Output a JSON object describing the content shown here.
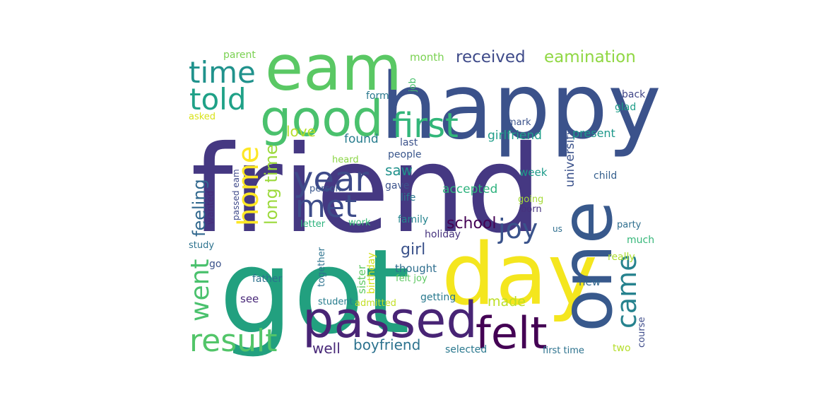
{
  "words": [
    {
      "text": "friend",
      "color": "#453882"
    },
    {
      "text": "got",
      "color": "#22a07f"
    },
    {
      "text": "happy",
      "color": "#3b528b"
    },
    {
      "text": "eam",
      "color": "#5ac864"
    },
    {
      "text": "day",
      "color": "#f4e61e"
    },
    {
      "text": "passed",
      "color": "#482475"
    },
    {
      "text": "one",
      "color": "#38598c"
    },
    {
      "text": "felt",
      "color": "#440154"
    },
    {
      "text": "good",
      "color": "#4ac16d"
    },
    {
      "text": "first",
      "color": "#32b67a"
    },
    {
      "text": "year",
      "color": "#3e4a89"
    },
    {
      "text": "met",
      "color": "#3e4c8a"
    },
    {
      "text": "result",
      "color": "#52c569"
    },
    {
      "text": "time",
      "color": "#20928c"
    },
    {
      "text": "told",
      "color": "#1fa187"
    },
    {
      "text": "home",
      "color": "#fde725"
    },
    {
      "text": "joy",
      "color": "#3a538b"
    },
    {
      "text": "came",
      "color": "#26828e"
    },
    {
      "text": "went",
      "color": "#4ac16d"
    },
    {
      "text": "long time",
      "color": "#9cd93b"
    },
    {
      "text": "feeling",
      "color": "#31688e"
    },
    {
      "text": "received",
      "color": "#3e4a89"
    },
    {
      "text": "eamination",
      "color": "#90d743"
    },
    {
      "text": "love",
      "color": "#b5de2b"
    },
    {
      "text": "saw",
      "color": "#21918c"
    },
    {
      "text": "school",
      "color": "#440154"
    },
    {
      "text": "girl",
      "color": "#3b528b"
    },
    {
      "text": "boyfriend",
      "color": "#2c728e"
    },
    {
      "text": "well",
      "color": "#482878"
    },
    {
      "text": "made",
      "color": "#bddf26"
    },
    {
      "text": "accepted",
      "color": "#2db27d"
    },
    {
      "text": "found",
      "color": "#287d8e"
    },
    {
      "text": "girlfriend",
      "color": "#1f9e89"
    },
    {
      "text": "university",
      "color": "#3b528b"
    },
    {
      "text": "present",
      "color": "#1f988b"
    },
    {
      "text": "week",
      "color": "#1e9b8a"
    },
    {
      "text": "month",
      "color": "#7ad151"
    },
    {
      "text": "last",
      "color": "#3b528b"
    },
    {
      "text": "much",
      "color": "#35b779"
    },
    {
      "text": "new",
      "color": "#31688e"
    },
    {
      "text": "thought",
      "color": "#2e6e8e"
    },
    {
      "text": "parent",
      "color": "#7ad151"
    },
    {
      "text": "form",
      "color": "#2a788e"
    },
    {
      "text": "job",
      "color": "#4ac16d"
    },
    {
      "text": "back",
      "color": "#404688"
    },
    {
      "text": "glad",
      "color": "#1f9e89"
    },
    {
      "text": "asked",
      "color": "#d8e219"
    },
    {
      "text": "mark",
      "color": "#3b528b"
    },
    {
      "text": "people",
      "color": "#39568c"
    },
    {
      "text": "heard",
      "color": "#8bd646"
    },
    {
      "text": "child",
      "color": "#355f8d"
    },
    {
      "text": "passed eam",
      "color": "#3e4989"
    },
    {
      "text": "wanted",
      "color": "#472d7b"
    },
    {
      "text": "person",
      "color": "#39568c"
    },
    {
      "text": "gave",
      "color": "#3b528b"
    },
    {
      "text": "life",
      "color": "#2a788e"
    },
    {
      "text": "going",
      "color": "#a5db36"
    },
    {
      "text": "born",
      "color": "#46337e"
    },
    {
      "text": "letter",
      "color": "#2db27d"
    },
    {
      "text": "work",
      "color": "#37b878"
    },
    {
      "text": "family",
      "color": "#25838e"
    },
    {
      "text": "holiday",
      "color": "#46327e"
    },
    {
      "text": "us",
      "color": "#2e6e8e"
    },
    {
      "text": "party",
      "color": "#2e6e8e"
    },
    {
      "text": "study",
      "color": "#2c728e"
    },
    {
      "text": "together",
      "color": "#2c728e"
    },
    {
      "text": "sister",
      "color": "#5ec962"
    },
    {
      "text": "birthday",
      "color": "#d2e21b"
    },
    {
      "text": "really",
      "color": "#addc30"
    },
    {
      "text": "go",
      "color": "#3b528b"
    },
    {
      "text": "father",
      "color": "#2c728e"
    },
    {
      "text": "felt joy",
      "color": "#5ec962"
    },
    {
      "text": "getting",
      "color": "#29798e"
    },
    {
      "text": "see",
      "color": "#482878"
    },
    {
      "text": "student",
      "color": "#287d8e"
    },
    {
      "text": "admitted",
      "color": "#c2df23"
    },
    {
      "text": "course",
      "color": "#3e4c8a"
    },
    {
      "text": "selected",
      "color": "#2a788e"
    },
    {
      "text": "first time",
      "color": "#2c728e"
    },
    {
      "text": "two",
      "color": "#b5de2b"
    }
  ]
}
